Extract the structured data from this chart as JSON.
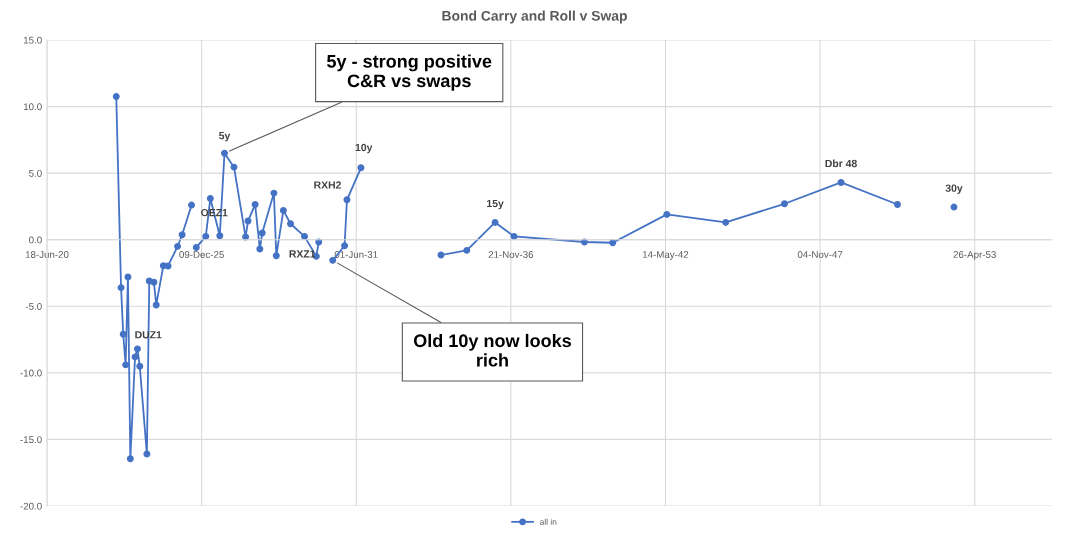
{
  "chart_data": {
    "type": "line",
    "title": "Bond Carry and Roll v Swap",
    "x": [
      "2022-12",
      "2023-02",
      "2023-03",
      "2023-04",
      "2023-05",
      "2023-06",
      "2023-08",
      "2023-09",
      "2023-10",
      "2024-01",
      "2024-02",
      "2024-04",
      "2024-05",
      "2024-08",
      "2024-10",
      "2025-02",
      "2025-04",
      "2025-08",
      "2025-09",
      "2025-10",
      "2026-02",
      "2026-04",
      "2026-08",
      "2026-10",
      "2027-02",
      "2027-07",
      "2027-08",
      "2027-11",
      "2028-01",
      "2028-02",
      "2028-07",
      "2028-08",
      "2028-11",
      "2029-02",
      "2029-08",
      "2030-01",
      "2030-02",
      "2030-05",
      "2030-08",
      "2031-01",
      "2031-02",
      "2031-08",
      "2033-01",
      "2034-06",
      "2035-05",
      "2036-05",
      "2037-01",
      "2039-07",
      "2040-07",
      "2042-06",
      "2044-07",
      "2046-08",
      "2048-08",
      "2050-08",
      "2051-08",
      "2052-08"
    ],
    "series": [
      {
        "name": "all in",
        "color": "#4472c4",
        "values": [
          10.75,
          -3.6,
          -7.1,
          -9.4,
          -2.8,
          -16.45,
          -8.8,
          -8.2,
          -9.5,
          -16.1,
          -3.1,
          -3.2,
          -4.9,
          -1.95,
          -1.97,
          -0.5,
          0.37,
          2.6,
          null,
          -0.58,
          0.25,
          3.1,
          0.3,
          6.5,
          5.45,
          0.2,
          1.4,
          2.65,
          -0.7,
          0.5,
          3.5,
          -1.2,
          2.2,
          1.2,
          0.25,
          -1.25,
          -0.17,
          null,
          -1.55,
          -0.45,
          3.0,
          5.4,
          null,
          -1.15,
          -0.8,
          1.3,
          0.25,
          -0.17,
          -0.23,
          1.9,
          1.3,
          2.7,
          4.3,
          2.65,
          null,
          2.45
        ]
      }
    ],
    "xlim": [
      "2020-06-18",
      "2056-01-21"
    ],
    "xticks": [
      {
        "value": "2020-06-18",
        "label": "18-Jun-20"
      },
      {
        "value": "2025-12-09",
        "label": "09-Dec-25"
      },
      {
        "value": "2031-06-01",
        "label": "01-Jun-31"
      },
      {
        "value": "2036-11-21",
        "label": "21-Nov-36"
      },
      {
        "value": "2042-05-14",
        "label": "14-May-42"
      },
      {
        "value": "2047-11-04",
        "label": "04-Nov-47"
      },
      {
        "value": "2053-04-26",
        "label": "26-Apr-53"
      }
    ],
    "ylim": [
      -20,
      15
    ],
    "yticks": [
      {
        "value": -20,
        "label": "-20.0"
      },
      {
        "value": -15,
        "label": "-15.0"
      },
      {
        "value": -10,
        "label": "-10.0"
      },
      {
        "value": -5,
        "label": "-5.0"
      },
      {
        "value": 0,
        "label": "0.0"
      },
      {
        "value": 5,
        "label": "5.0"
      },
      {
        "value": 10,
        "label": "10.0"
      },
      {
        "value": 15,
        "label": "15.0"
      }
    ],
    "grid": true,
    "legend": "bottom",
    "marker": "circle",
    "line_style": "solid",
    "annotations": [
      {
        "text": "5y - strong positive\nC&R vs swaps",
        "x": "2026-10",
        "y": 6.5
      },
      {
        "text": "Old 10y now looks\nrich",
        "x": "2030-08",
        "y": -1.55
      },
      {
        "text": "5y",
        "x": "2026-10",
        "y": 6.5
      },
      {
        "text": "10y",
        "x": "2031-08",
        "y": 5.4
      },
      {
        "text": "RXH2",
        "x": "2031-02",
        "y": 3.0
      },
      {
        "text": "RXZ1",
        "x": "2030-08",
        "y": -1.55
      },
      {
        "text": "OEZ1",
        "x": "2026-08",
        "y": 0.3
      },
      {
        "text": "DUZ1",
        "x": "2023-03",
        "y": -7.1
      },
      {
        "text": "15y",
        "x": "2036-05",
        "y": 1.3
      },
      {
        "text": "Dbr 48",
        "x": "2048-08",
        "y": 4.3
      },
      {
        "text": "30y",
        "x": "2052-08",
        "y": 2.45
      }
    ]
  }
}
